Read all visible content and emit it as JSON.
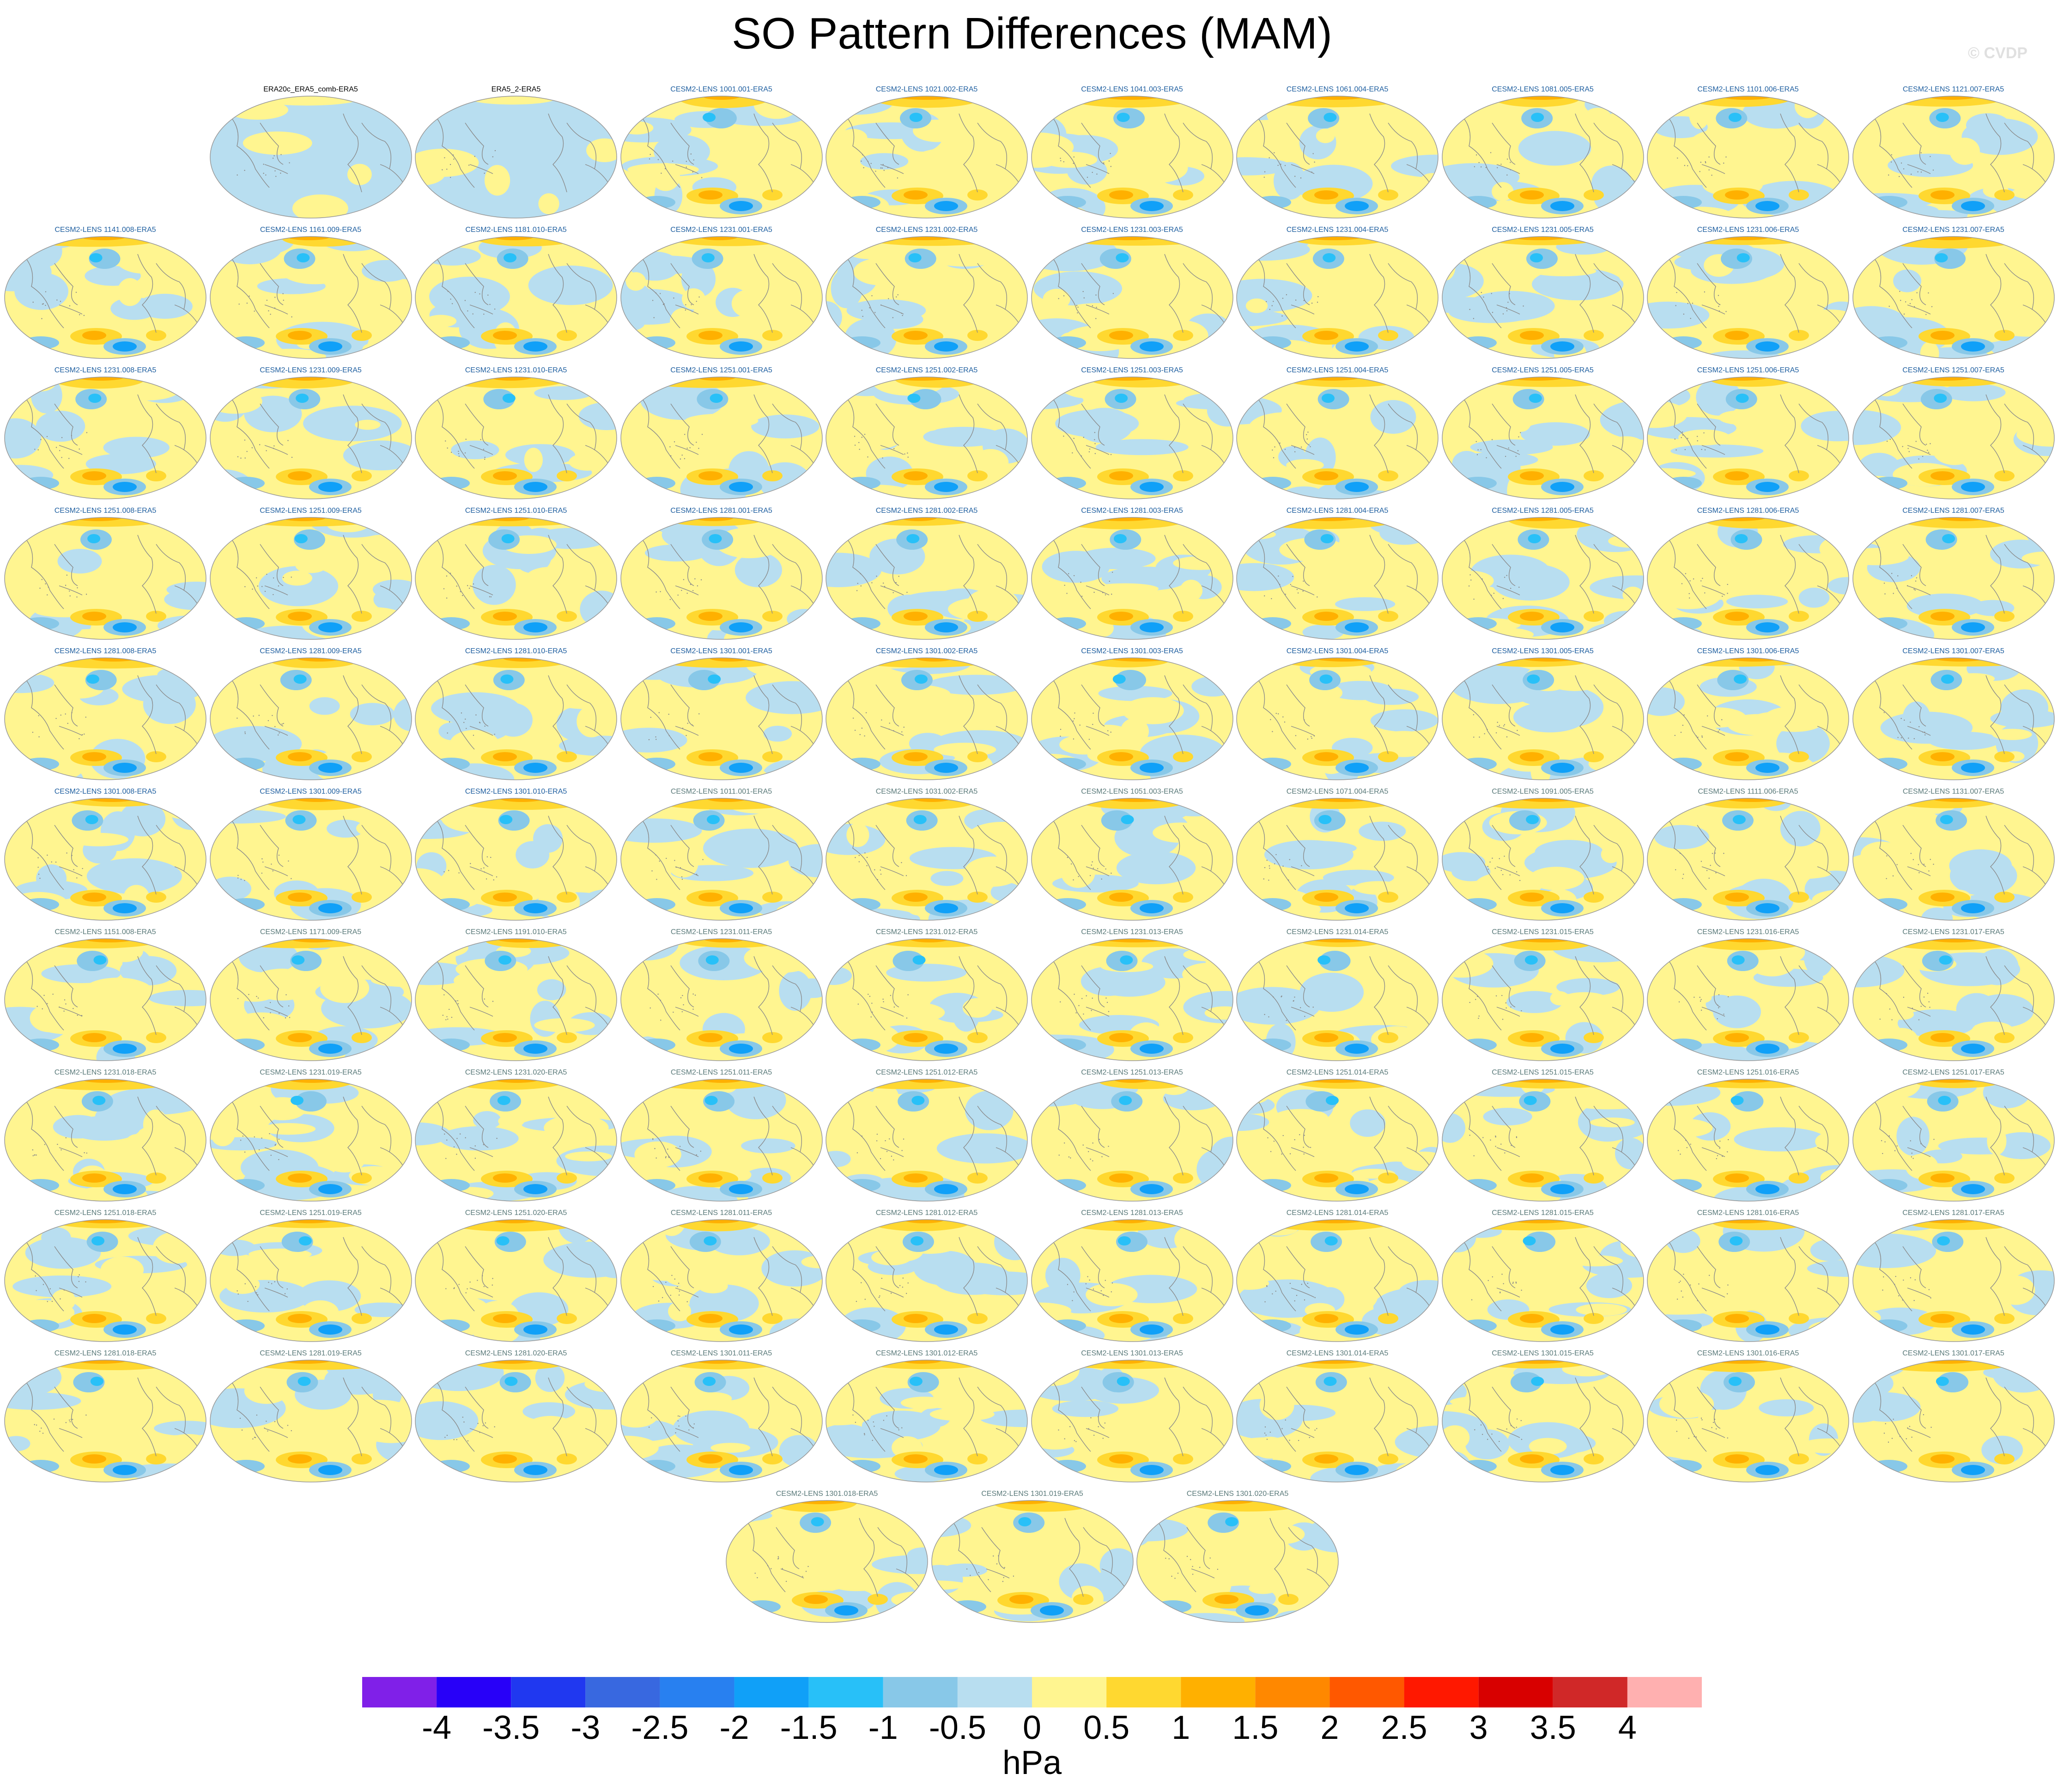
{
  "title": "SO Pattern Differences (MAM)",
  "credit": "© CVDP",
  "colors": {
    "title_first_group": "#000000",
    "title_blue_group": "#1f5fa0",
    "title_grey_group": "#5a7a7a",
    "coastline": "#8a8a8a"
  },
  "panels": [
    {
      "title": "ERA20c_ERA5_comb-ERA5",
      "group": "black",
      "style": "obs1"
    },
    {
      "title": "ERA5_2-ERA5",
      "group": "black",
      "style": "obs2"
    },
    {
      "title": "CESM2-LENS 1001.001-ERA5",
      "group": "blue"
    },
    {
      "title": "CESM2-LENS 1021.002-ERA5",
      "group": "blue"
    },
    {
      "title": "CESM2-LENS 1041.003-ERA5",
      "group": "blue"
    },
    {
      "title": "CESM2-LENS 1061.004-ERA5",
      "group": "blue"
    },
    {
      "title": "CESM2-LENS 1081.005-ERA5",
      "group": "blue"
    },
    {
      "title": "CESM2-LENS 1101.006-ERA5",
      "group": "blue"
    },
    {
      "title": "CESM2-LENS 1121.007-ERA5",
      "group": "blue"
    },
    {
      "title": "CESM2-LENS 1141.008-ERA5",
      "group": "blue"
    },
    {
      "title": "CESM2-LENS 1161.009-ERA5",
      "group": "blue"
    },
    {
      "title": "CESM2-LENS 1181.010-ERA5",
      "group": "blue"
    },
    {
      "title": "CESM2-LENS 1231.001-ERA5",
      "group": "blue"
    },
    {
      "title": "CESM2-LENS 1231.002-ERA5",
      "group": "blue"
    },
    {
      "title": "CESM2-LENS 1231.003-ERA5",
      "group": "blue"
    },
    {
      "title": "CESM2-LENS 1231.004-ERA5",
      "group": "blue"
    },
    {
      "title": "CESM2-LENS 1231.005-ERA5",
      "group": "blue"
    },
    {
      "title": "CESM2-LENS 1231.006-ERA5",
      "group": "blue"
    },
    {
      "title": "CESM2-LENS 1231.007-ERA5",
      "group": "blue"
    },
    {
      "title": "CESM2-LENS 1231.008-ERA5",
      "group": "blue"
    },
    {
      "title": "CESM2-LENS 1231.009-ERA5",
      "group": "blue"
    },
    {
      "title": "CESM2-LENS 1231.010-ERA5",
      "group": "blue"
    },
    {
      "title": "CESM2-LENS 1251.001-ERA5",
      "group": "blue"
    },
    {
      "title": "CESM2-LENS 1251.002-ERA5",
      "group": "blue"
    },
    {
      "title": "CESM2-LENS 1251.003-ERA5",
      "group": "blue"
    },
    {
      "title": "CESM2-LENS 1251.004-ERA5",
      "group": "blue"
    },
    {
      "title": "CESM2-LENS 1251.005-ERA5",
      "group": "blue"
    },
    {
      "title": "CESM2-LENS 1251.006-ERA5",
      "group": "blue"
    },
    {
      "title": "CESM2-LENS 1251.007-ERA5",
      "group": "blue"
    },
    {
      "title": "CESM2-LENS 1251.008-ERA5",
      "group": "blue"
    },
    {
      "title": "CESM2-LENS 1251.009-ERA5",
      "group": "blue"
    },
    {
      "title": "CESM2-LENS 1251.010-ERA5",
      "group": "blue"
    },
    {
      "title": "CESM2-LENS 1281.001-ERA5",
      "group": "blue"
    },
    {
      "title": "CESM2-LENS 1281.002-ERA5",
      "group": "blue"
    },
    {
      "title": "CESM2-LENS 1281.003-ERA5",
      "group": "blue"
    },
    {
      "title": "CESM2-LENS 1281.004-ERA5",
      "group": "blue"
    },
    {
      "title": "CESM2-LENS 1281.005-ERA5",
      "group": "blue"
    },
    {
      "title": "CESM2-LENS 1281.006-ERA5",
      "group": "blue"
    },
    {
      "title": "CESM2-LENS 1281.007-ERA5",
      "group": "blue"
    },
    {
      "title": "CESM2-LENS 1281.008-ERA5",
      "group": "blue"
    },
    {
      "title": "CESM2-LENS 1281.009-ERA5",
      "group": "blue"
    },
    {
      "title": "CESM2-LENS 1281.010-ERA5",
      "group": "blue"
    },
    {
      "title": "CESM2-LENS 1301.001-ERA5",
      "group": "blue"
    },
    {
      "title": "CESM2-LENS 1301.002-ERA5",
      "group": "blue"
    },
    {
      "title": "CESM2-LENS 1301.003-ERA5",
      "group": "blue"
    },
    {
      "title": "CESM2-LENS 1301.004-ERA5",
      "group": "blue"
    },
    {
      "title": "CESM2-LENS 1301.005-ERA5",
      "group": "blue"
    },
    {
      "title": "CESM2-LENS 1301.006-ERA5",
      "group": "blue"
    },
    {
      "title": "CESM2-LENS 1301.007-ERA5",
      "group": "blue"
    },
    {
      "title": "CESM2-LENS 1301.008-ERA5",
      "group": "blue"
    },
    {
      "title": "CESM2-LENS 1301.009-ERA5",
      "group": "blue"
    },
    {
      "title": "CESM2-LENS 1301.010-ERA5",
      "group": "blue"
    },
    {
      "title": "CESM2-LENS 1011.001-ERA5",
      "group": "grey"
    },
    {
      "title": "CESM2-LENS 1031.002-ERA5",
      "group": "grey"
    },
    {
      "title": "CESM2-LENS 1051.003-ERA5",
      "group": "grey"
    },
    {
      "title": "CESM2-LENS 1071.004-ERA5",
      "group": "grey"
    },
    {
      "title": "CESM2-LENS 1091.005-ERA5",
      "group": "grey"
    },
    {
      "title": "CESM2-LENS 1111.006-ERA5",
      "group": "grey"
    },
    {
      "title": "CESM2-LENS 1131.007-ERA5",
      "group": "grey"
    },
    {
      "title": "CESM2-LENS 1151.008-ERA5",
      "group": "grey"
    },
    {
      "title": "CESM2-LENS 1171.009-ERA5",
      "group": "grey"
    },
    {
      "title": "CESM2-LENS 1191.010-ERA5",
      "group": "grey"
    },
    {
      "title": "CESM2-LENS 1231.011-ERA5",
      "group": "grey"
    },
    {
      "title": "CESM2-LENS 1231.012-ERA5",
      "group": "grey"
    },
    {
      "title": "CESM2-LENS 1231.013-ERA5",
      "group": "grey"
    },
    {
      "title": "CESM2-LENS 1231.014-ERA5",
      "group": "grey"
    },
    {
      "title": "CESM2-LENS 1231.015-ERA5",
      "group": "grey"
    },
    {
      "title": "CESM2-LENS 1231.016-ERA5",
      "group": "grey"
    },
    {
      "title": "CESM2-LENS 1231.017-ERA5",
      "group": "grey"
    },
    {
      "title": "CESM2-LENS 1231.018-ERA5",
      "group": "grey"
    },
    {
      "title": "CESM2-LENS 1231.019-ERA5",
      "group": "grey"
    },
    {
      "title": "CESM2-LENS 1231.020-ERA5",
      "group": "grey"
    },
    {
      "title": "CESM2-LENS 1251.011-ERA5",
      "group": "grey"
    },
    {
      "title": "CESM2-LENS 1251.012-ERA5",
      "group": "grey"
    },
    {
      "title": "CESM2-LENS 1251.013-ERA5",
      "group": "grey"
    },
    {
      "title": "CESM2-LENS 1251.014-ERA5",
      "group": "grey"
    },
    {
      "title": "CESM2-LENS 1251.015-ERA5",
      "group": "grey"
    },
    {
      "title": "CESM2-LENS 1251.016-ERA5",
      "group": "grey"
    },
    {
      "title": "CESM2-LENS 1251.017-ERA5",
      "group": "grey"
    },
    {
      "title": "CESM2-LENS 1251.018-ERA5",
      "group": "grey"
    },
    {
      "title": "CESM2-LENS 1251.019-ERA5",
      "group": "grey"
    },
    {
      "title": "CESM2-LENS 1251.020-ERA5",
      "group": "grey"
    },
    {
      "title": "CESM2-LENS 1281.011-ERA5",
      "group": "grey"
    },
    {
      "title": "CESM2-LENS 1281.012-ERA5",
      "group": "grey"
    },
    {
      "title": "CESM2-LENS 1281.013-ERA5",
      "group": "grey"
    },
    {
      "title": "CESM2-LENS 1281.014-ERA5",
      "group": "grey"
    },
    {
      "title": "CESM2-LENS 1281.015-ERA5",
      "group": "grey"
    },
    {
      "title": "CESM2-LENS 1281.016-ERA5",
      "group": "grey"
    },
    {
      "title": "CESM2-LENS 1281.017-ERA5",
      "group": "grey"
    },
    {
      "title": "CESM2-LENS 1281.018-ERA5",
      "group": "grey"
    },
    {
      "title": "CESM2-LENS 1281.019-ERA5",
      "group": "grey"
    },
    {
      "title": "CESM2-LENS 1281.020-ERA5",
      "group": "grey"
    },
    {
      "title": "CESM2-LENS 1301.011-ERA5",
      "group": "grey"
    },
    {
      "title": "CESM2-LENS 1301.012-ERA5",
      "group": "grey"
    },
    {
      "title": "CESM2-LENS 1301.013-ERA5",
      "group": "grey"
    },
    {
      "title": "CESM2-LENS 1301.014-ERA5",
      "group": "grey"
    },
    {
      "title": "CESM2-LENS 1301.015-ERA5",
      "group": "grey"
    },
    {
      "title": "CESM2-LENS 1301.016-ERA5",
      "group": "grey"
    },
    {
      "title": "CESM2-LENS 1301.017-ERA5",
      "group": "grey"
    },
    {
      "title": "CESM2-LENS 1301.018-ERA5",
      "group": "grey"
    },
    {
      "title": "CESM2-LENS 1301.019-ERA5",
      "group": "grey"
    },
    {
      "title": "CESM2-LENS 1301.020-ERA5",
      "group": "grey"
    }
  ],
  "colorbar": {
    "labels": [
      "-4",
      "-3.5",
      "-3",
      "-2.5",
      "-2",
      "-1.5",
      "-1",
      "-0.5",
      "0",
      "0.5",
      "1",
      "1.5",
      "2",
      "2.5",
      "3",
      "3.5",
      "4"
    ],
    "colors": [
      "#8020e8",
      "#2800f8",
      "#2038f0",
      "#3868e0",
      "#2880f0",
      "#10a0f8",
      "#28c0f8",
      "#88c8e8",
      "#b8def0",
      "#fff590",
      "#ffd830",
      "#ffb000",
      "#ff8800",
      "#ff5800",
      "#ff1800",
      "#d80000",
      "#d02828",
      "#ffb0b0"
    ],
    "units": "hPa"
  }
}
